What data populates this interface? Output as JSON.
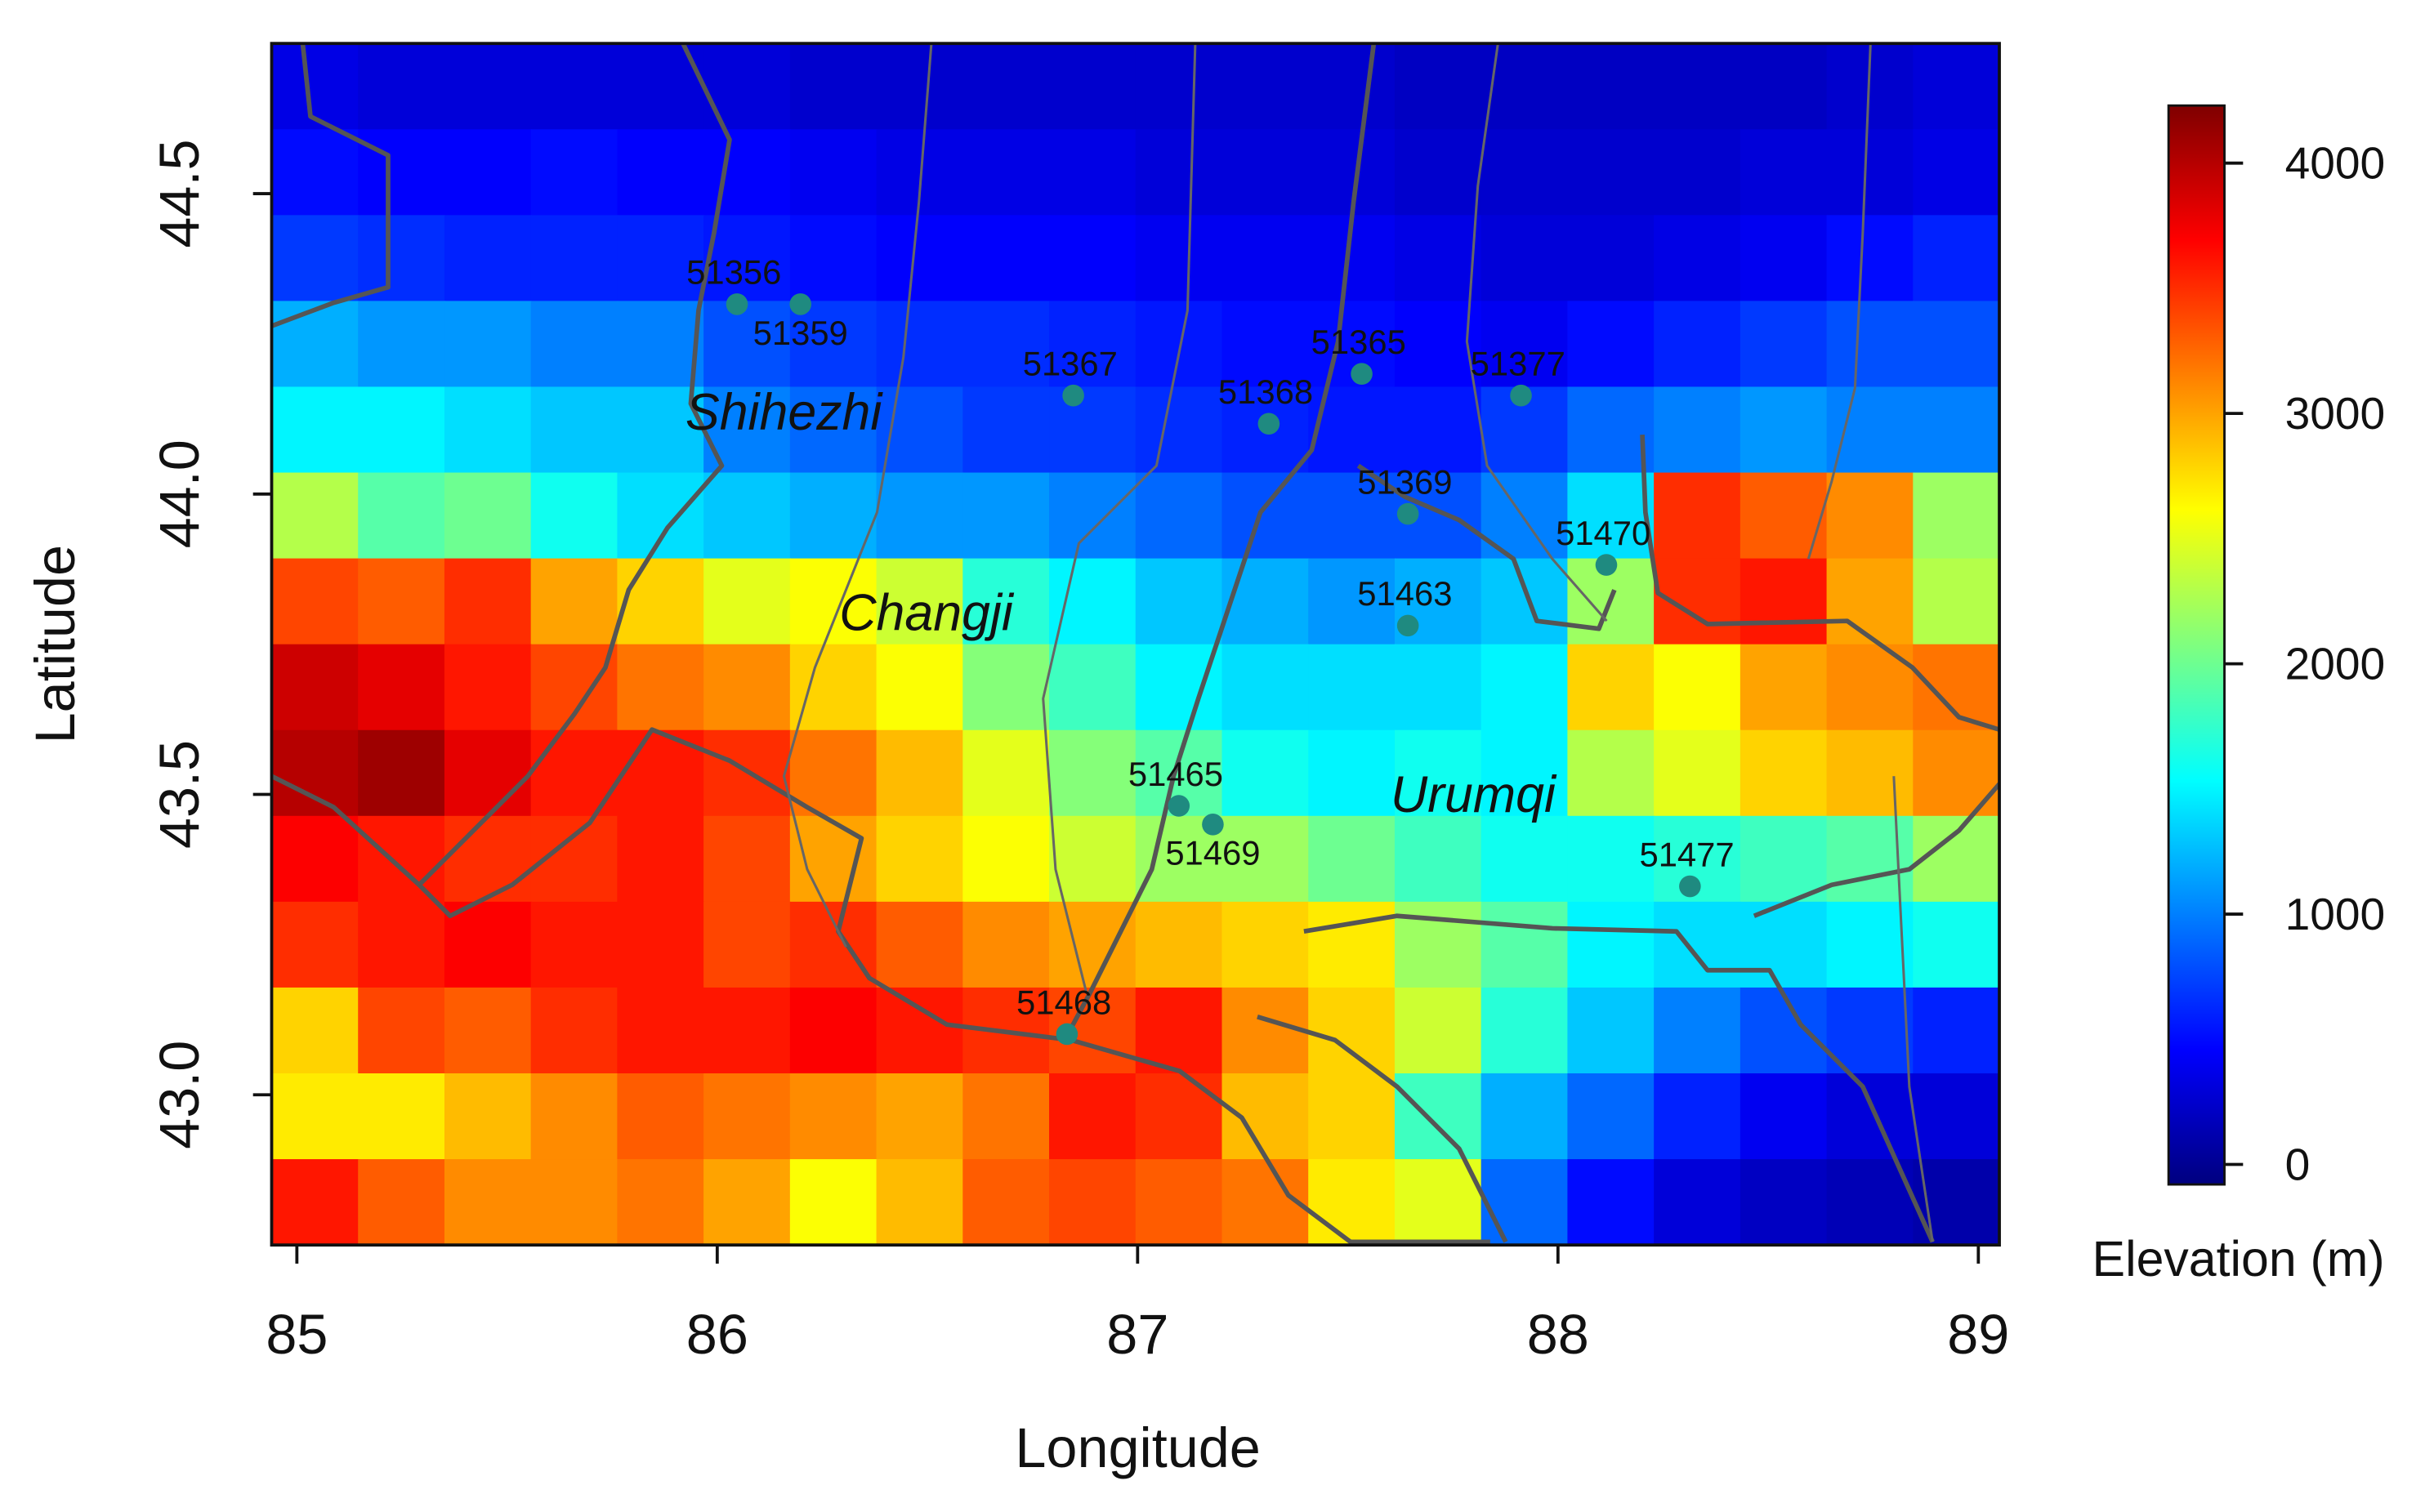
{
  "chart_data": {
    "type": "heatmap",
    "x_label": "Longitude",
    "y_label": "Latitude",
    "colorbar_label": "Elevation (m)",
    "xlim": [
      84.94,
      89.05
    ],
    "ylim": [
      42.75,
      44.75
    ],
    "xticks": [
      85,
      86,
      87,
      88,
      89
    ],
    "yticks": [
      {
        "value": 43,
        "label": "43.0"
      },
      43.5,
      {
        "value": 44,
        "label": "44.0"
      },
      44.5
    ],
    "zlim": [
      -80,
      4230
    ],
    "zticks": [
      0,
      1000,
      2000,
      3000,
      4000
    ],
    "colormap": [
      "#00007f",
      "#0000ff",
      "#007fff",
      "#00ffff",
      "#7fff7f",
      "#ffff00",
      "#ff7f00",
      "#ff0000",
      "#7f0000"
    ],
    "z": [
      [
        350,
        300,
        300,
        300,
        300,
        300,
        250,
        250,
        250,
        250,
        250,
        250,
        250,
        200,
        200,
        200,
        200,
        200,
        250,
        300
      ],
      [
        500,
        450,
        450,
        500,
        450,
        450,
        400,
        350,
        350,
        350,
        300,
        300,
        300,
        250,
        250,
        250,
        250,
        300,
        300,
        350
      ],
      [
        700,
        650,
        600,
        600,
        600,
        550,
        500,
        450,
        450,
        450,
        400,
        400,
        400,
        350,
        300,
        300,
        350,
        400,
        500,
        600
      ],
      [
        1200,
        1100,
        1100,
        1000,
        1000,
        800,
        700,
        650,
        650,
        600,
        550,
        500,
        500,
        450,
        400,
        500,
        600,
        700,
        800,
        800
      ],
      [
        1500,
        1500,
        1400,
        1300,
        1300,
        1000,
        900,
        800,
        700,
        700,
        650,
        600,
        550,
        550,
        700,
        900,
        1000,
        1100,
        1000,
        1000
      ],
      [
        2300,
        1900,
        2000,
        1600,
        1400,
        1300,
        1200,
        1100,
        1100,
        1000,
        900,
        800,
        800,
        800,
        1000,
        1400,
        3500,
        3300,
        3100,
        2200
      ],
      [
        3400,
        3300,
        3500,
        3000,
        2800,
        2500,
        2600,
        2400,
        1700,
        1500,
        1300,
        1200,
        1100,
        1200,
        1300,
        2200,
        3500,
        3600,
        3000,
        2300
      ],
      [
        3900,
        3800,
        3600,
        3400,
        3200,
        3100,
        2800,
        2600,
        2100,
        1800,
        1500,
        1400,
        1400,
        1400,
        1500,
        2800,
        2600,
        3000,
        3100,
        3200
      ],
      [
        4000,
        4100,
        3800,
        3600,
        3600,
        3500,
        3200,
        2900,
        2500,
        2100,
        1900,
        1600,
        1500,
        1600,
        1500,
        2300,
        2500,
        2800,
        2900,
        3100
      ],
      [
        3700,
        3600,
        3500,
        3500,
        3600,
        3400,
        3000,
        2800,
        2600,
        2400,
        2200,
        2200,
        2000,
        1800,
        1600,
        1600,
        1700,
        1800,
        1900,
        2200
      ],
      [
        3500,
        3600,
        3700,
        3600,
        3600,
        3400,
        3500,
        3300,
        3100,
        3000,
        2900,
        2800,
        2700,
        2200,
        1900,
        1500,
        1400,
        1400,
        1500,
        1600
      ],
      [
        2800,
        3400,
        3300,
        3500,
        3600,
        3600,
        3700,
        3600,
        3500,
        3400,
        3600,
        3100,
        2800,
        2400,
        1700,
        1300,
        1000,
        800,
        700,
        600
      ],
      [
        2700,
        2700,
        2900,
        3100,
        3300,
        3200,
        3100,
        3000,
        3200,
        3600,
        3500,
        2900,
        2800,
        1800,
        1200,
        900,
        600,
        400,
        300,
        300
      ],
      [
        3600,
        3300,
        3100,
        3100,
        3200,
        3000,
        2600,
        2900,
        3300,
        3400,
        3300,
        3200,
        2700,
        2500,
        900,
        500,
        300,
        200,
        150,
        100
      ]
    ],
    "station_color": "#1f8a80",
    "stations": [
      {
        "label": "51356",
        "x": 86.047,
        "y": 44.316
      },
      {
        "label": "51359",
        "x": 86.198,
        "y": 44.316
      },
      {
        "label": "51367",
        "x": 86.847,
        "y": 44.164
      },
      {
        "label": "51365",
        "x": 87.533,
        "y": 44.2
      },
      {
        "label": "51368",
        "x": 87.312,
        "y": 44.117
      },
      {
        "label": "51377",
        "x": 87.912,
        "y": 44.164
      },
      {
        "label": "51369",
        "x": 87.643,
        "y": 43.967
      },
      {
        "label": "51470",
        "x": 88.115,
        "y": 43.882
      },
      {
        "label": "51463",
        "x": 87.643,
        "y": 43.781
      },
      {
        "label": "51465",
        "x": 87.098,
        "y": 43.481
      },
      {
        "label": "51469",
        "x": 87.179,
        "y": 43.45
      },
      {
        "label": "51477",
        "x": 88.314,
        "y": 43.347
      },
      {
        "label": "51468",
        "x": 86.832,
        "y": 43.101
      }
    ],
    "cities": [
      {
        "label": "Shihezhi",
        "x": 86.158,
        "y": 44.138
      },
      {
        "label": "Changji",
        "x": 86.497,
        "y": 43.804
      },
      {
        "label": "Urumqi",
        "x": 87.798,
        "y": 43.502
      }
    ]
  }
}
